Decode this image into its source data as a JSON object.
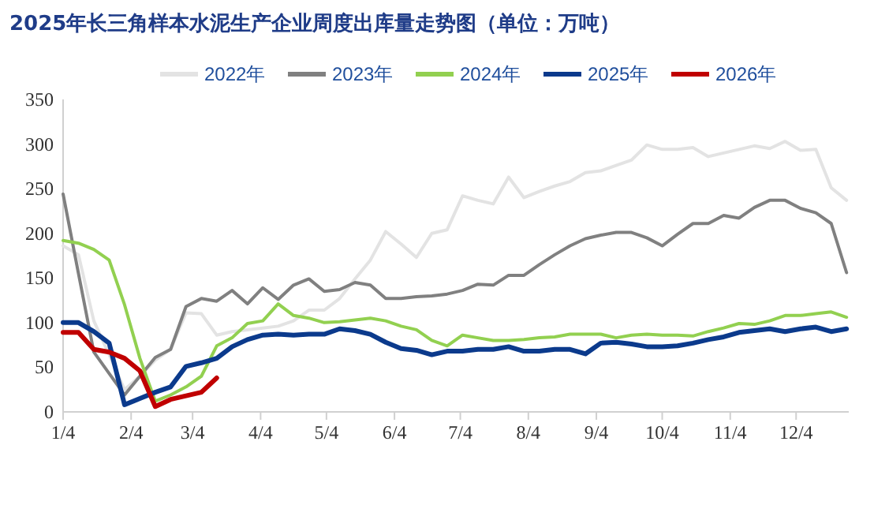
{
  "chart_data": {
    "type": "line",
    "title": "2025年长三角样本水泥生产企业周度出库量走势图（单位：万吨）",
    "x": [
      "--01-04",
      "--01-11",
      "--01-18",
      "--01-25",
      "--02-01",
      "--02-08",
      "--02-15",
      "--02-22",
      "--03-01",
      "--03-08",
      "--03-15",
      "--03-22",
      "--03-29",
      "--04-05",
      "--04-12",
      "--04-19",
      "--04-26",
      "--05-03",
      "--05-10",
      "--05-17",
      "--05-24",
      "--05-31",
      "--06-07",
      "--06-14",
      "--06-21",
      "--06-28",
      "--07-05",
      "--07-12",
      "--07-19",
      "--07-26",
      "--08-02",
      "--08-09",
      "--08-16",
      "--08-23",
      "--08-30",
      "--09-06",
      "--09-13",
      "--09-20",
      "--09-27",
      "--10-04",
      "--10-11",
      "--10-18",
      "--10-25",
      "--11-01",
      "--11-08",
      "--11-15",
      "--11-22",
      "--11-29",
      "--12-06",
      "--12-13",
      "--12-20",
      "--12-27"
    ],
    "xlim": [
      "--01-04",
      "--12-28"
    ],
    "xticks": [
      {
        "value": "--01-04",
        "label": "1/4"
      },
      {
        "value": "--02-04",
        "label": "2/4"
      },
      {
        "value": "--03-04",
        "label": "3/4"
      },
      {
        "value": "--04-04",
        "label": "4/4"
      },
      {
        "value": "--05-04",
        "label": "5/4"
      },
      {
        "value": "--06-04",
        "label": "6/4"
      },
      {
        "value": "--07-04",
        "label": "7/4"
      },
      {
        "value": "--08-04",
        "label": "8/4"
      },
      {
        "value": "--09-04",
        "label": "9/4"
      },
      {
        "value": "--10-04",
        "label": "10/4"
      },
      {
        "value": "--11-04",
        "label": "11/4"
      },
      {
        "value": "--12-04",
        "label": "12/4"
      }
    ],
    "ylim": [
      0,
      350
    ],
    "yticks": [
      0,
      50,
      100,
      150,
      200,
      250,
      300,
      350
    ],
    "legend": "top",
    "grid": false,
    "series": [
      {
        "name": "2022年",
        "color": "#e3e3e3",
        "values": [
          186,
          176,
          102,
          64,
          25,
          40,
          58,
          70,
          111,
          110,
          86,
          90,
          92,
          94,
          96,
          102,
          114,
          114,
          127,
          149,
          170,
          202,
          188,
          173,
          200,
          204,
          242,
          237,
          233,
          263,
          240,
          247,
          253,
          258,
          268,
          270,
          276,
          282,
          299,
          294,
          294,
          296,
          286,
          290,
          294,
          298,
          295,
          303,
          293,
          294,
          251,
          237
        ]
      },
      {
        "name": "2023年",
        "color": "#808080",
        "values": [
          244,
          155,
          67,
          43,
          19,
          40,
          61,
          70,
          118,
          127,
          124,
          136,
          121,
          139,
          126,
          142,
          149,
          135,
          137,
          145,
          142,
          127,
          127,
          129,
          130,
          132,
          136,
          143,
          142,
          153,
          153,
          165,
          176,
          186,
          194,
          198,
          201,
          201,
          195,
          186,
          199,
          211,
          211,
          220,
          217,
          229,
          237,
          237,
          228,
          223,
          211,
          156
        ]
      },
      {
        "name": "2024年",
        "color": "#92d050",
        "values": [
          192,
          189,
          182,
          170,
          120,
          60,
          12,
          19,
          28,
          40,
          74,
          83,
          99,
          102,
          121,
          108,
          105,
          100,
          101,
          103,
          105,
          102,
          96,
          92,
          80,
          74,
          86,
          83,
          80,
          80,
          81,
          83,
          84,
          87,
          87,
          87,
          83,
          86,
          87,
          86,
          86,
          85,
          90,
          94,
          99,
          98,
          102,
          108,
          108,
          110,
          112,
          106
        ]
      },
      {
        "name": "2025年",
        "color": "#0b3a8c",
        "values": [
          100,
          100,
          90,
          77,
          8,
          15,
          22,
          28,
          51,
          55,
          60,
          73,
          81,
          86,
          87,
          86,
          87,
          87,
          93,
          91,
          87,
          78,
          71,
          69,
          64,
          68,
          68,
          70,
          70,
          73,
          68,
          68,
          70,
          70,
          65,
          77,
          78,
          76,
          73,
          73,
          74,
          77,
          81,
          84,
          89,
          91,
          93,
          90,
          93,
          95,
          90,
          93
        ]
      },
      {
        "name": "2026年",
        "color": "#c00000",
        "values": [
          89,
          89,
          70,
          67,
          60,
          46,
          6,
          14,
          18,
          22,
          38,
          null,
          null,
          null,
          null,
          null,
          null,
          null,
          null,
          null,
          null,
          null,
          null,
          null,
          null,
          null,
          null,
          null,
          null,
          null,
          null,
          null,
          null,
          null,
          null,
          null,
          null,
          null,
          null,
          null,
          null,
          null,
          null,
          null,
          null,
          null,
          null,
          null,
          null,
          null,
          null,
          null
        ]
      }
    ]
  }
}
